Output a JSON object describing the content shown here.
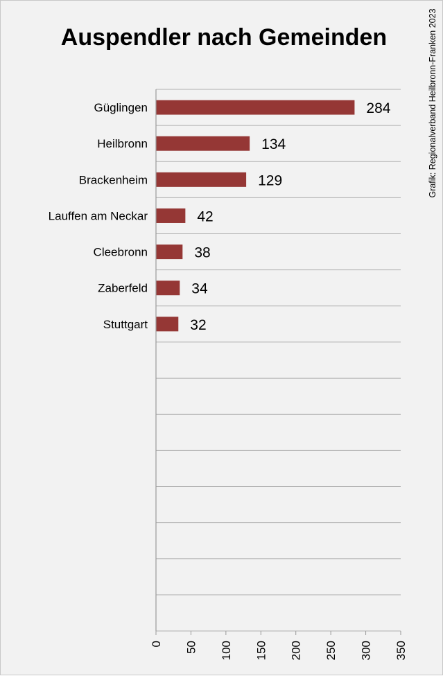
{
  "chart_data": {
    "type": "bar",
    "orientation": "horizontal",
    "title": "Auspendler nach Gemeinden",
    "categories": [
      "Güglingen",
      "Heilbronn",
      "Brackenheim",
      "Lauffen am Neckar",
      "Cleebronn",
      "Zaberfeld",
      "Stuttgart"
    ],
    "values": [
      284,
      134,
      129,
      42,
      38,
      34,
      32
    ],
    "xlabel": "",
    "ylabel": "",
    "xlim": [
      0,
      350
    ],
    "x_ticks": [
      "0",
      "50",
      "100",
      "150",
      "200",
      "250",
      "300",
      "350"
    ],
    "grid": true,
    "bar_color": "#953735"
  },
  "credit": "Grafik: Regionalverband Heilbronn-Franken 2023"
}
